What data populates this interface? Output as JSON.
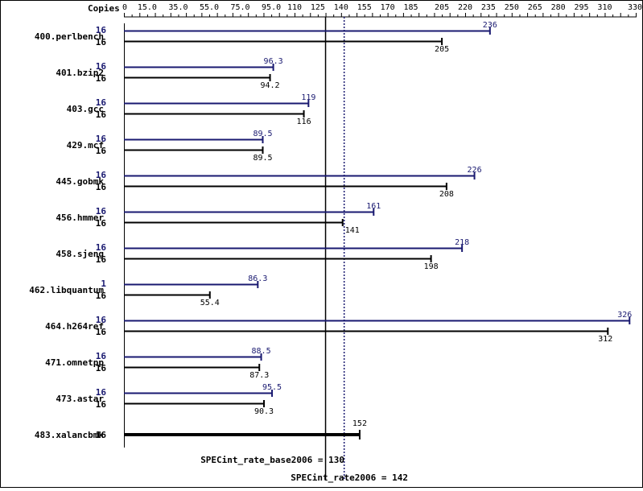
{
  "chart_data": {
    "type": "bar",
    "header_label": "Copies",
    "axis_ticks": [
      "0",
      "15.0",
      "35.0",
      "55.0",
      "75.0",
      "95.0",
      "110",
      "125",
      "140",
      "155",
      "170",
      "185",
      "205",
      "220",
      "235",
      "250",
      "265",
      "280",
      "295",
      "310",
      "330"
    ],
    "axis_tick_values": [
      0,
      15,
      35,
      55,
      75,
      95,
      110,
      125,
      140,
      155,
      170,
      185,
      205,
      220,
      235,
      250,
      265,
      280,
      295,
      310,
      330
    ],
    "xlim": [
      0,
      330
    ],
    "categories": [
      "400.perlbench",
      "401.bzip2",
      "403.gcc",
      "429.mcf",
      "445.gobmk",
      "456.hmmer",
      "458.sjeng",
      "462.libquantum",
      "464.h264ref",
      "471.omnetpp",
      "473.astar",
      "483.xalancbmk"
    ],
    "series": [
      {
        "key": "peak",
        "color": "#191970",
        "copies": [
          "16",
          "16",
          "16",
          "16",
          "16",
          "16",
          "16",
          "1",
          "16",
          "16",
          "16",
          null
        ],
        "values": [
          236,
          96.3,
          119,
          89.5,
          226,
          161,
          218,
          86.3,
          326,
          88.5,
          95.5,
          null
        ],
        "labels": [
          "236",
          "96.3",
          "119",
          "89.5",
          "226",
          "161",
          "218",
          "86.3",
          "326",
          "88.5",
          "95.5",
          null
        ]
      },
      {
        "key": "base",
        "color": "#000000",
        "copies": [
          "16",
          "16",
          "16",
          "16",
          "16",
          "16",
          "16",
          "16",
          "16",
          "16",
          "16",
          "16"
        ],
        "values": [
          205,
          94.2,
          116,
          89.5,
          208,
          141,
          198,
          55.4,
          312,
          87.3,
          90.3,
          152
        ],
        "labels": [
          "205",
          "94.2",
          "116",
          "89.5",
          "208",
          "141",
          "198",
          "55.4",
          "312",
          "87.3",
          "90.3",
          "152"
        ]
      }
    ],
    "reference_lines": [
      {
        "key": "base",
        "value": 130,
        "label": "SPECint_rate_base2006 = 130",
        "color": "#000000",
        "style": "solid"
      },
      {
        "key": "peak",
        "value": 142,
        "label": "SPECint_rate2006 = 142",
        "color": "#191970",
        "style": "dotted"
      }
    ]
  }
}
